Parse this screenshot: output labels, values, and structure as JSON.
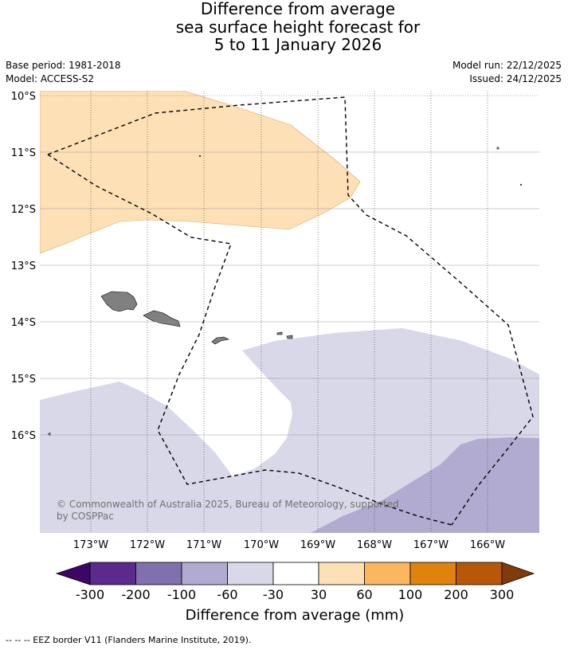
{
  "title": {
    "line1": "Difference from average",
    "line2": "sea surface height forecast for",
    "line3": "5 to 11 January 2026"
  },
  "meta": {
    "base_period": "Base period: 1981-2018",
    "model": "Model: ACCESS-S2",
    "model_run": "Model run: 22/12/2025",
    "issued": "Issued: 24/12/2025"
  },
  "map": {
    "longitude_labels": [
      "173°W",
      "172°W",
      "171°W",
      "170°W",
      "169°W",
      "168°W",
      "167°W",
      "166°W"
    ],
    "latitude_labels": [
      "10°S",
      "11°S",
      "12°S",
      "13°S",
      "14°S",
      "15°S",
      "16°S"
    ],
    "copyright_line1": "© Commonwealth of Australia 2025, Bureau of Meteorology, supported",
    "copyright_line2": "by COSPPac",
    "land_color": "#808080",
    "colors": {
      "pos_30_60": "#fde0b5",
      "neg_30_60": "#d8d8e9",
      "neg_60_100": "#b1aad1"
    }
  },
  "colorbar": {
    "title": "Difference from average (mm)",
    "ticks": [
      "-300",
      "-200",
      "-100",
      "-60",
      "-30",
      "30",
      "60",
      "100",
      "200",
      "300"
    ],
    "colors": [
      "#3d0566",
      "#5a2a8c",
      "#8070ad",
      "#b1aad1",
      "#d8d8e9",
      "#ffffff",
      "#fde0b5",
      "#fbb75f",
      "#e1820f",
      "#b65808",
      "#7f3b08"
    ]
  },
  "footer": "--  --  -- EEZ border V11 (Flanders Marine Institute, 2019)."
}
